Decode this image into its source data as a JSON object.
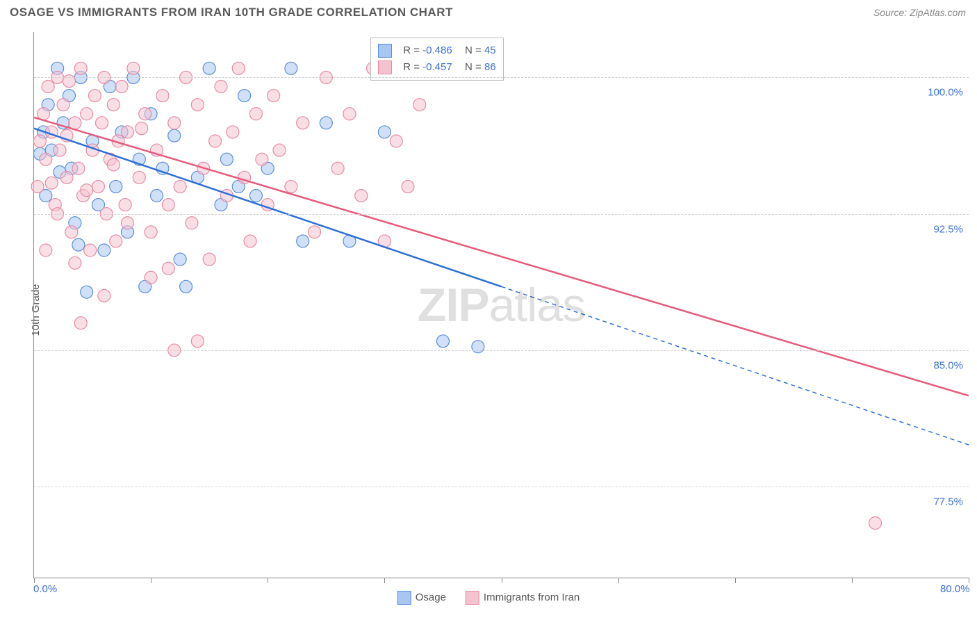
{
  "meta": {
    "title": "OSAGE VS IMMIGRANTS FROM IRAN 10TH GRADE CORRELATION CHART",
    "source_label": "Source: ZipAtlas.com",
    "watermark_bold": "ZIP",
    "watermark_light": "atlas"
  },
  "chart": {
    "type": "scatter",
    "y_axis_label": "10th Grade",
    "xlim": [
      0,
      80
    ],
    "ylim": [
      72.5,
      102.5
    ],
    "x_tick_positions": [
      0,
      10,
      20,
      30,
      40,
      50,
      60,
      70,
      80
    ],
    "x_tick_labels_shown": {
      "0": "0.0%",
      "80": "80.0%"
    },
    "y_ticks": [
      {
        "value": 77.5,
        "label": "77.5%"
      },
      {
        "value": 85.0,
        "label": "85.0%"
      },
      {
        "value": 92.5,
        "label": "92.5%"
      },
      {
        "value": 100.0,
        "label": "100.0%"
      }
    ],
    "grid_color": "#d0d0d0",
    "axis_color": "#888888",
    "background_color": "#ffffff",
    "marker_radius": 9,
    "marker_opacity": 0.55,
    "series": [
      {
        "name": "Osage",
        "color_fill": "#a7c7f2",
        "color_stroke": "#5a8fd8",
        "line_color": "#2d6fd6",
        "r_value": "-0.486",
        "n_value": "45",
        "trend": {
          "x1": 0,
          "y1": 97.2,
          "x2": 80,
          "y2": 79.8,
          "solid_until_x": 40
        },
        "points": [
          [
            0.5,
            95.8
          ],
          [
            0.8,
            97.0
          ],
          [
            1.0,
            93.5
          ],
          [
            1.2,
            98.5
          ],
          [
            1.5,
            96.0
          ],
          [
            2.0,
            100.5
          ],
          [
            2.2,
            94.8
          ],
          [
            2.5,
            97.5
          ],
          [
            3.0,
            99.0
          ],
          [
            3.2,
            95.0
          ],
          [
            3.5,
            92.0
          ],
          [
            3.8,
            90.8
          ],
          [
            4.0,
            100.0
          ],
          [
            4.5,
            88.2
          ],
          [
            5.0,
            96.5
          ],
          [
            5.5,
            93.0
          ],
          [
            6.0,
            90.5
          ],
          [
            6.5,
            99.5
          ],
          [
            7.0,
            94.0
          ],
          [
            7.5,
            97.0
          ],
          [
            8.0,
            91.5
          ],
          [
            8.5,
            100.0
          ],
          [
            9.0,
            95.5
          ],
          [
            9.5,
            88.5
          ],
          [
            10.0,
            98.0
          ],
          [
            10.5,
            93.5
          ],
          [
            11.0,
            95.0
          ],
          [
            12.0,
            96.8
          ],
          [
            12.5,
            90.0
          ],
          [
            13.0,
            88.5
          ],
          [
            14.0,
            94.5
          ],
          [
            15.0,
            100.5
          ],
          [
            16.0,
            93.0
          ],
          [
            16.5,
            95.5
          ],
          [
            17.5,
            94.0
          ],
          [
            18.0,
            99.0
          ],
          [
            19.0,
            93.5
          ],
          [
            20.0,
            95.0
          ],
          [
            22.0,
            100.5
          ],
          [
            23.0,
            91.0
          ],
          [
            25.0,
            97.5
          ],
          [
            27.0,
            91.0
          ],
          [
            30.0,
            97.0
          ],
          [
            35.0,
            85.5
          ],
          [
            38.0,
            85.2
          ]
        ]
      },
      {
        "name": "Immigrants from Iran",
        "color_fill": "#f5c2cf",
        "color_stroke": "#e88aa3",
        "line_color": "#e85a7a",
        "r_value": "-0.457",
        "n_value": "86",
        "trend": {
          "x1": 0,
          "y1": 97.8,
          "x2": 80,
          "y2": 82.5,
          "solid_until_x": 80
        },
        "points": [
          [
            0.3,
            94.0
          ],
          [
            0.5,
            96.5
          ],
          [
            0.8,
            98.0
          ],
          [
            1.0,
            95.5
          ],
          [
            1.2,
            99.5
          ],
          [
            1.5,
            97.0
          ],
          [
            1.8,
            93.0
          ],
          [
            2.0,
            100.0
          ],
          [
            2.2,
            96.0
          ],
          [
            2.5,
            98.5
          ],
          [
            2.8,
            94.5
          ],
          [
            3.0,
            99.8
          ],
          [
            3.2,
            91.5
          ],
          [
            3.5,
            97.5
          ],
          [
            3.8,
            95.0
          ],
          [
            4.0,
            100.5
          ],
          [
            4.2,
            93.5
          ],
          [
            4.5,
            98.0
          ],
          [
            4.8,
            90.5
          ],
          [
            5.0,
            96.0
          ],
          [
            5.2,
            99.0
          ],
          [
            5.5,
            94.0
          ],
          [
            5.8,
            97.5
          ],
          [
            6.0,
            100.0
          ],
          [
            6.2,
            92.5
          ],
          [
            6.5,
            95.5
          ],
          [
            6.8,
            98.5
          ],
          [
            7.0,
            91.0
          ],
          [
            7.2,
            96.5
          ],
          [
            7.5,
            99.5
          ],
          [
            7.8,
            93.0
          ],
          [
            8.0,
            97.0
          ],
          [
            8.5,
            100.5
          ],
          [
            9.0,
            94.5
          ],
          [
            9.5,
            98.0
          ],
          [
            10.0,
            91.5
          ],
          [
            10.5,
            96.0
          ],
          [
            11.0,
            99.0
          ],
          [
            11.5,
            89.5
          ],
          [
            12.0,
            97.5
          ],
          [
            12.5,
            94.0
          ],
          [
            13.0,
            100.0
          ],
          [
            13.5,
            92.0
          ],
          [
            14.0,
            98.5
          ],
          [
            14.5,
            95.0
          ],
          [
            15.0,
            90.0
          ],
          [
            15.5,
            96.5
          ],
          [
            16.0,
            99.5
          ],
          [
            16.5,
            93.5
          ],
          [
            17.0,
            97.0
          ],
          [
            17.5,
            100.5
          ],
          [
            18.0,
            94.5
          ],
          [
            18.5,
            91.0
          ],
          [
            19.0,
            98.0
          ],
          [
            19.5,
            95.5
          ],
          [
            20.0,
            93.0
          ],
          [
            20.5,
            99.0
          ],
          [
            21.0,
            96.0
          ],
          [
            22.0,
            94.0
          ],
          [
            23.0,
            97.5
          ],
          [
            24.0,
            91.5
          ],
          [
            25.0,
            100.0
          ],
          [
            26.0,
            95.0
          ],
          [
            27.0,
            98.0
          ],
          [
            28.0,
            93.5
          ],
          [
            29.0,
            100.5
          ],
          [
            30.0,
            91.0
          ],
          [
            31.0,
            96.5
          ],
          [
            32.0,
            94.0
          ],
          [
            33.0,
            98.5
          ],
          [
            10.0,
            89.0
          ],
          [
            12.0,
            85.0
          ],
          [
            4.0,
            86.5
          ],
          [
            14.0,
            85.5
          ],
          [
            72.0,
            75.5
          ],
          [
            2.0,
            92.5
          ],
          [
            3.5,
            89.8
          ],
          [
            1.0,
            90.5
          ],
          [
            6.0,
            88.0
          ],
          [
            8.0,
            92.0
          ],
          [
            1.5,
            94.2
          ],
          [
            2.8,
            96.8
          ],
          [
            4.5,
            93.8
          ],
          [
            6.8,
            95.2
          ],
          [
            9.2,
            97.2
          ],
          [
            11.5,
            93.0
          ]
        ]
      }
    ],
    "top_legend": {
      "left_pct": 36,
      "top_pct": 1,
      "r_label_prefix": "R =",
      "n_label_prefix": "N ="
    },
    "label_fontsize": 15,
    "title_fontsize": 17,
    "tick_label_color": "#3b6fd6"
  }
}
